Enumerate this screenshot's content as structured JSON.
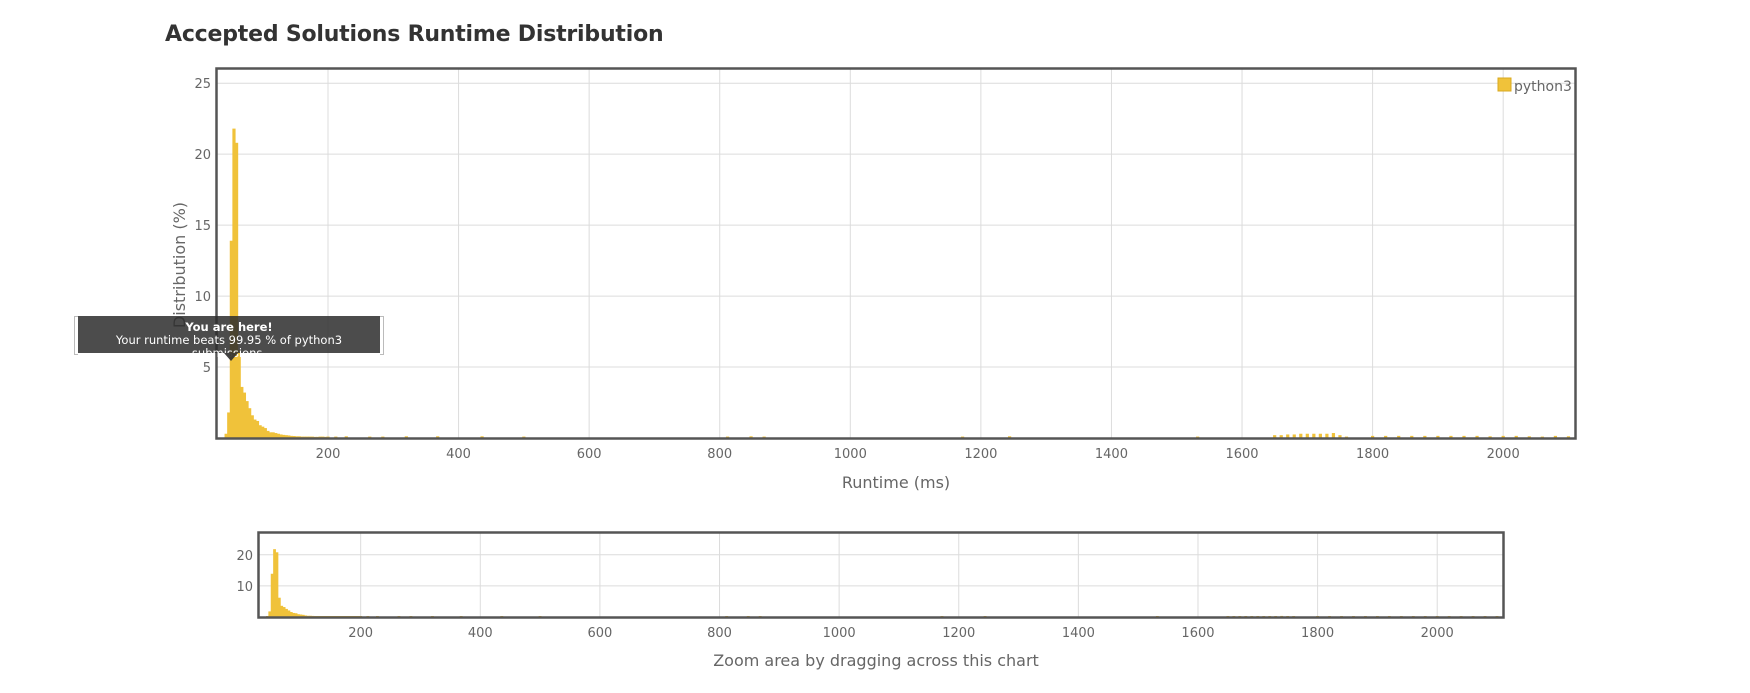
{
  "title": "Accepted Solutions Runtime Distribution",
  "tooltip": {
    "line1": "You are here!",
    "line2": "Your runtime beats 99.95 % of python3 submissions."
  },
  "zoom_hint": "Zoom area by dragging across this chart",
  "colors": {
    "bar": "#f0c23a",
    "frame": "#555555",
    "grid": "#dcdcdc"
  },
  "chart_data": [
    {
      "type": "bar",
      "title": "Accepted Solutions Runtime Distribution",
      "xlabel": "Runtime (ms)",
      "ylabel": "Distribution (%)",
      "xlim": [
        30,
        2110
      ],
      "ylim": [
        0,
        26
      ],
      "xticks": [
        200,
        400,
        600,
        800,
        1000,
        1200,
        1400,
        1600,
        1800,
        2000
      ],
      "yticks": [
        5,
        10,
        15,
        20,
        25
      ],
      "grid": true,
      "legend": {
        "position": "top-right",
        "entries": [
          "python3"
        ]
      },
      "series": [
        {
          "name": "python3",
          "x": [
            44,
            48,
            52,
            56,
            60,
            64,
            68,
            72,
            76,
            80,
            84,
            88,
            92,
            96,
            100,
            104,
            108,
            112,
            116,
            120,
            124,
            128,
            132,
            136,
            140,
            144,
            148,
            152,
            156,
            160,
            164,
            168,
            172,
            176,
            180,
            184,
            188,
            192,
            196,
            200,
            212,
            228,
            264,
            284,
            320,
            368,
            436,
            500,
            812,
            848,
            868,
            1172,
            1244,
            1532,
            1650,
            1660,
            1670,
            1680,
            1690,
            1700,
            1710,
            1720,
            1730,
            1740,
            1750,
            1760,
            1800,
            1820,
            1840,
            1860,
            1880,
            1900,
            1920,
            1940,
            1960,
            1980,
            2000,
            2020,
            2040,
            2060,
            2080,
            2100
          ],
          "values": [
            0.3,
            1.8,
            13.9,
            21.8,
            20.8,
            6.2,
            3.6,
            3.2,
            2.6,
            2.1,
            1.6,
            1.3,
            1.2,
            0.9,
            0.8,
            0.7,
            0.5,
            0.4,
            0.4,
            0.35,
            0.3,
            0.25,
            0.22,
            0.2,
            0.18,
            0.15,
            0.14,
            0.12,
            0.12,
            0.1,
            0.1,
            0.1,
            0.1,
            0.1,
            0.08,
            0.08,
            0.1,
            0.1,
            0.08,
            0.1,
            0.1,
            0.12,
            0.1,
            0.1,
            0.12,
            0.12,
            0.12,
            0.1,
            0.1,
            0.12,
            0.1,
            0.1,
            0.12,
            0.1,
            0.2,
            0.2,
            0.25,
            0.25,
            0.3,
            0.3,
            0.3,
            0.3,
            0.3,
            0.35,
            0.2,
            0.1,
            0.15,
            0.15,
            0.15,
            0.15,
            0.15,
            0.15,
            0.15,
            0.15,
            0.15,
            0.12,
            0.15,
            0.15,
            0.12,
            0.1,
            0.15,
            0.12
          ]
        }
      ]
    },
    {
      "type": "bar",
      "xlim": [
        30,
        2110
      ],
      "ylim": [
        0,
        27
      ],
      "xticks": [
        200,
        400,
        600,
        800,
        1000,
        1200,
        1400,
        1600,
        1800,
        2000
      ],
      "yticks": [
        10,
        20
      ],
      "grid": true,
      "series_ref": "python3"
    }
  ]
}
